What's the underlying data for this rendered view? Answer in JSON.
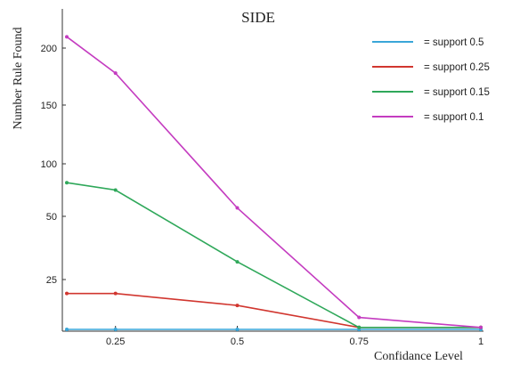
{
  "chart_data": {
    "type": "line",
    "title": "SIDE",
    "xlabel": "Confidance Level",
    "ylabel": "Number Rule Found",
    "x": [
      0.15,
      0.25,
      0.5,
      0.75,
      1
    ],
    "x_ticks": [
      "0.25",
      "0.5",
      "0.75",
      "1"
    ],
    "x_tick_values": [
      0.25,
      0.5,
      0.75,
      1
    ],
    "y_ticks": [
      "25",
      "50",
      "100",
      "150",
      "200"
    ],
    "y_tick_values": [
      25,
      50,
      100,
      150,
      200
    ],
    "xlim": [
      0.15,
      1
    ],
    "ylim": [
      0,
      230
    ],
    "grid": false,
    "legend_position": "top-right",
    "series": [
      {
        "name": "= support 0.5",
        "color": "#3aa6d8",
        "values": [
          0,
          0,
          0,
          0,
          0
        ]
      },
      {
        "name": "= support 0.25",
        "color": "#d1362f",
        "values": [
          18,
          18,
          12,
          1,
          1
        ]
      },
      {
        "name": "= support 0.15",
        "color": "#2fa85a",
        "values": [
          82,
          75,
          32,
          1,
          1
        ]
      },
      {
        "name": "= support 0.1",
        "color": "#c43cc0",
        "values": [
          210,
          178,
          58,
          6,
          1
        ]
      }
    ]
  }
}
